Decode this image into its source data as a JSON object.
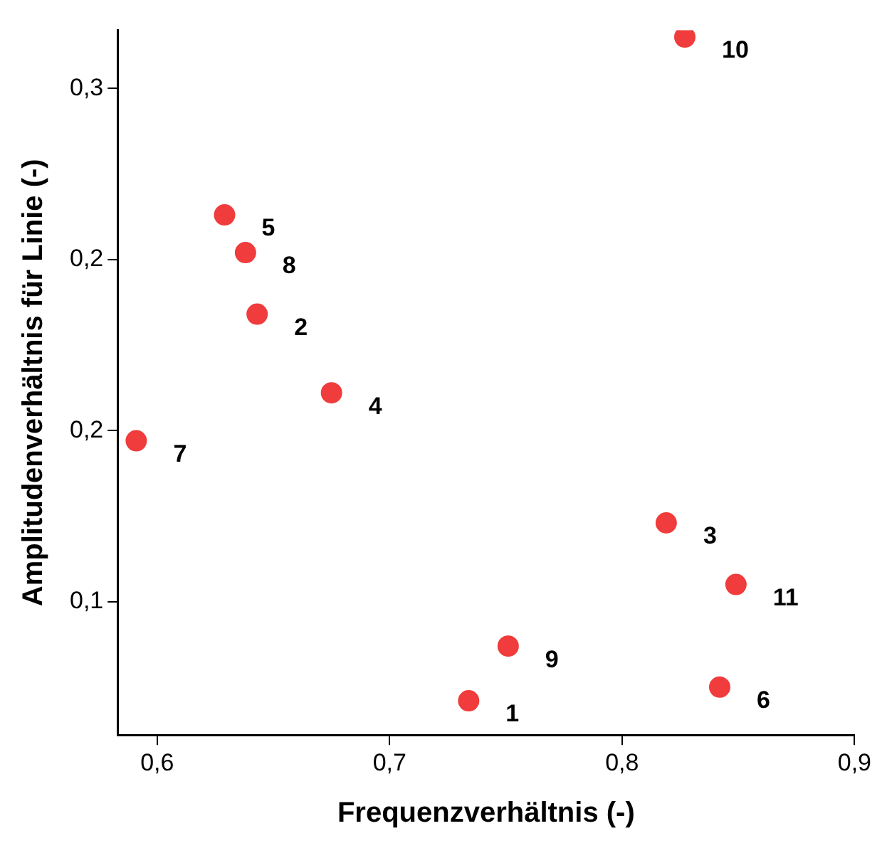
{
  "chart_data": {
    "type": "scatter",
    "xlabel": "Frequenzverhältnis (-)",
    "ylabel": "Amplitudenverhältnis für Linie (-)",
    "x": [
      0.734,
      0.643,
      0.819,
      0.675,
      0.629,
      0.842,
      0.591,
      0.638,
      0.751,
      0.827,
      0.849
    ],
    "values": [
      0.071,
      0.184,
      0.123,
      0.161,
      0.213,
      0.075,
      0.147,
      0.202,
      0.087,
      0.265,
      0.105
    ],
    "color": "#f03c3c",
    "marker": "circle",
    "grid": false,
    "legend": false,
    "xlim": [
      0.583,
      0.9
    ],
    "xticks": [
      {
        "value": 0.6,
        "label": "0,6"
      },
      {
        "value": 0.7,
        "label": "0,7"
      },
      {
        "value": 0.8,
        "label": "0,8"
      },
      {
        "value": 0.9,
        "label": "0,9"
      }
    ],
    "ylim": [
      0.061,
      0.267
    ],
    "yticks": [
      {
        "value": 0.1,
        "label": "0,1"
      },
      {
        "value": 0.15,
        "label": "0,2"
      },
      {
        "value": 0.2,
        "label": "0,2"
      },
      {
        "value": 0.25,
        "label": "0,3"
      }
    ],
    "annotations": [
      {
        "text": "1",
        "x": 0.734,
        "y": 0.071
      },
      {
        "text": "2",
        "x": 0.643,
        "y": 0.184
      },
      {
        "text": "3",
        "x": 0.819,
        "y": 0.123
      },
      {
        "text": "4",
        "x": 0.675,
        "y": 0.161
      },
      {
        "text": "5",
        "x": 0.629,
        "y": 0.213
      },
      {
        "text": "6",
        "x": 0.842,
        "y": 0.075
      },
      {
        "text": "7",
        "x": 0.591,
        "y": 0.147
      },
      {
        "text": "8",
        "x": 0.638,
        "y": 0.202
      },
      {
        "text": "9",
        "x": 0.751,
        "y": 0.087
      },
      {
        "text": "10",
        "x": 0.827,
        "y": 0.265
      },
      {
        "text": "11",
        "x": 0.849,
        "y": 0.105
      }
    ]
  }
}
